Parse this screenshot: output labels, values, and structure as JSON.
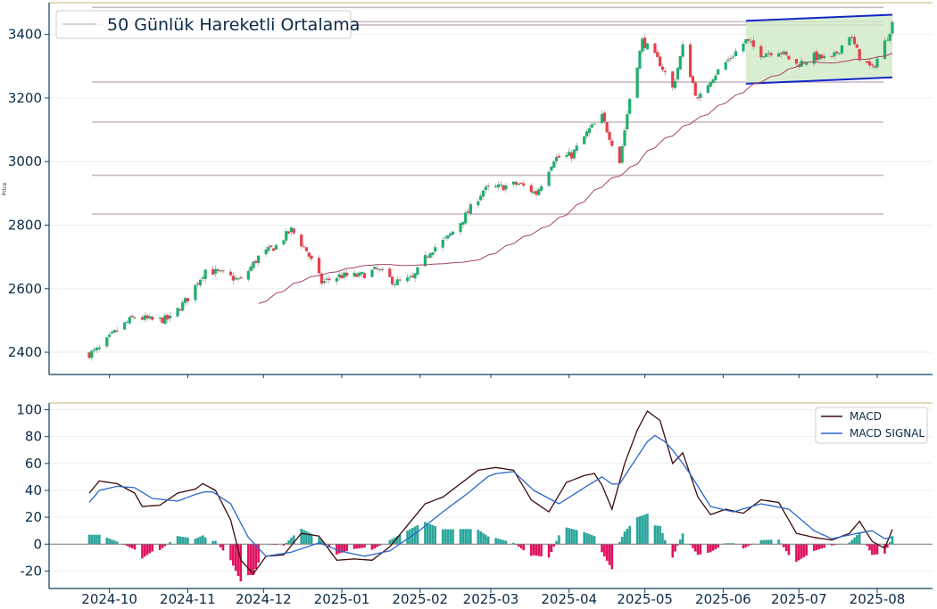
{
  "chart_data": [
    {
      "type": "candlestick",
      "ylabel": "Price",
      "ylim": [
        2330,
        3500
      ],
      "yticks": [
        2400,
        2600,
        2800,
        3000,
        3200,
        3400
      ],
      "legend": [
        "50 Günlük Hareketli Ortalama"
      ],
      "legend_position": "top-left",
      "colors": {
        "up": "#1fae6e",
        "down": "#e83f4a",
        "ma": "#a64563",
        "level": "#c9b8c2",
        "channel": "#1426c8",
        "channel_fill": "#cfe8c6",
        "axis": "#123e5c"
      },
      "horizontal_levels": [
        3485,
        3440,
        3430,
        3250,
        3124,
        2957,
        2835
      ],
      "channel": {
        "x": [
          "2025-06-10",
          "2025-08-07"
        ],
        "upper": [
          3443,
          3462
        ],
        "lower": [
          3245,
          3265
        ]
      },
      "anchors": [
        [
          "2024-09-23",
          2395
        ],
        [
          "2024-09-27",
          2410
        ],
        [
          "2024-10-04",
          2470
        ],
        [
          "2024-10-11",
          2512
        ],
        [
          "2024-10-18",
          2500
        ],
        [
          "2024-10-25",
          2505
        ],
        [
          "2024-11-01",
          2570
        ],
        [
          "2024-11-08",
          2660
        ],
        [
          "2024-11-15",
          2645
        ],
        [
          "2024-11-22",
          2625
        ],
        [
          "2024-11-29",
          2700
        ],
        [
          "2024-12-06",
          2735
        ],
        [
          "2024-12-12",
          2785
        ],
        [
          "2024-12-18",
          2720
        ],
        [
          "2024-12-24",
          2620
        ],
        [
          "2024-12-31",
          2640
        ],
        [
          "2025-01-08",
          2640
        ],
        [
          "2025-01-15",
          2660
        ],
        [
          "2025-01-22",
          2620
        ],
        [
          "2025-01-29",
          2630
        ],
        [
          "2025-02-05",
          2720
        ],
        [
          "2025-02-12",
          2760
        ],
        [
          "2025-02-19",
          2830
        ],
        [
          "2025-02-26",
          2910
        ],
        [
          "2025-03-05",
          2920
        ],
        [
          "2025-03-12",
          2930
        ],
        [
          "2025-03-19",
          2900
        ],
        [
          "2025-03-26",
          3010
        ],
        [
          "2025-04-02",
          3020
        ],
        [
          "2025-04-09",
          3100
        ],
        [
          "2025-04-14",
          3140
        ],
        [
          "2025-04-21",
          3000
        ],
        [
          "2025-04-25",
          3200
        ],
        [
          "2025-04-30",
          3380
        ],
        [
          "2025-05-07",
          3310
        ],
        [
          "2025-05-12",
          3230
        ],
        [
          "2025-05-16",
          3360
        ],
        [
          "2025-05-22",
          3190
        ],
        [
          "2025-05-27",
          3260
        ],
        [
          "2025-06-03",
          3320
        ],
        [
          "2025-06-10",
          3380
        ],
        [
          "2025-06-16",
          3340
        ],
        [
          "2025-06-23",
          3350
        ],
        [
          "2025-06-30",
          3305
        ],
        [
          "2025-07-07",
          3330
        ],
        [
          "2025-07-14",
          3320
        ],
        [
          "2025-07-21",
          3400
        ],
        [
          "2025-07-25",
          3330
        ],
        [
          "2025-07-30",
          3290
        ],
        [
          "2025-08-04",
          3375
        ],
        [
          "2025-08-07",
          3435
        ]
      ]
    },
    {
      "type": "bar+line",
      "ylim": [
        -33,
        105
      ],
      "yticks": [
        -20,
        0,
        20,
        40,
        60,
        80,
        100
      ],
      "xticks": [
        "2024-10",
        "2024-11",
        "2024-12",
        "2025-01",
        "2025-02",
        "2025-03",
        "2025-04",
        "2025-05",
        "2025-06",
        "2025-07",
        "2025-08"
      ],
      "legend_position": "top-right",
      "series": [
        {
          "name": "MACD",
          "color": "#3d0a0a",
          "anchors": [
            [
              "2024-09-23",
              38
            ],
            [
              "2024-09-27",
              47
            ],
            [
              "2024-10-04",
              45
            ],
            [
              "2024-10-11",
              38
            ],
            [
              "2024-10-14",
              28
            ],
            [
              "2024-10-21",
              29
            ],
            [
              "2024-10-28",
              38
            ],
            [
              "2024-11-04",
              41
            ],
            [
              "2024-11-07",
              45
            ],
            [
              "2024-11-12",
              40
            ],
            [
              "2024-11-18",
              18
            ],
            [
              "2024-11-22",
              -12
            ],
            [
              "2024-11-27",
              -22
            ],
            [
              "2024-12-02",
              -9
            ],
            [
              "2024-12-09",
              -8
            ],
            [
              "2024-12-16",
              8
            ],
            [
              "2024-12-23",
              6
            ],
            [
              "2024-12-30",
              -12
            ],
            [
              "2025-01-06",
              -11
            ],
            [
              "2025-01-13",
              -12
            ],
            [
              "2025-01-20",
              -2
            ],
            [
              "2025-01-27",
              14
            ],
            [
              "2025-02-03",
              30
            ],
            [
              "2025-02-10",
              35
            ],
            [
              "2025-02-17",
              45
            ],
            [
              "2025-02-24",
              55
            ],
            [
              "2025-03-03",
              57
            ],
            [
              "2025-03-10",
              55
            ],
            [
              "2025-03-17",
              33
            ],
            [
              "2025-03-24",
              24
            ],
            [
              "2025-03-31",
              46
            ],
            [
              "2025-04-07",
              51
            ],
            [
              "2025-04-12",
              53
            ],
            [
              "2025-04-18",
              26
            ],
            [
              "2025-04-23",
              60
            ],
            [
              "2025-04-28",
              85
            ],
            [
              "2025-05-02",
              99
            ],
            [
              "2025-05-07",
              92
            ],
            [
              "2025-05-12",
              60
            ],
            [
              "2025-05-16",
              68
            ],
            [
              "2025-05-22",
              35
            ],
            [
              "2025-05-27",
              22
            ],
            [
              "2025-06-02",
              26
            ],
            [
              "2025-06-09",
              23
            ],
            [
              "2025-06-16",
              33
            ],
            [
              "2025-06-23",
              31
            ],
            [
              "2025-06-30",
              8
            ],
            [
              "2025-07-07",
              5
            ],
            [
              "2025-07-14",
              3
            ],
            [
              "2025-07-21",
              8
            ],
            [
              "2025-07-25",
              17
            ],
            [
              "2025-07-30",
              2
            ],
            [
              "2025-08-04",
              -3
            ],
            [
              "2025-08-07",
              11
            ]
          ]
        },
        {
          "name": "MACD SIGNAL",
          "color": "#2a67c9",
          "anchors": [
            [
              "2024-09-23",
              31
            ],
            [
              "2024-09-27",
              40
            ],
            [
              "2024-10-04",
              43
            ],
            [
              "2024-10-11",
              42
            ],
            [
              "2024-10-18",
              34
            ],
            [
              "2024-10-28",
              32
            ],
            [
              "2024-11-04",
              37
            ],
            [
              "2024-11-10",
              40
            ],
            [
              "2024-11-18",
              30
            ],
            [
              "2024-11-25",
              5
            ],
            [
              "2024-12-02",
              -9
            ],
            [
              "2024-12-12",
              -6
            ],
            [
              "2024-12-23",
              1
            ],
            [
              "2024-12-31",
              -5
            ],
            [
              "2025-01-10",
              -9
            ],
            [
              "2025-01-20",
              -5
            ],
            [
              "2025-01-31",
              9
            ],
            [
              "2025-02-10",
              24
            ],
            [
              "2025-02-20",
              38
            ],
            [
              "2025-03-01",
              52
            ],
            [
              "2025-03-10",
              54
            ],
            [
              "2025-03-18",
              40
            ],
            [
              "2025-03-28",
              30
            ],
            [
              "2025-04-07",
              42
            ],
            [
              "2025-04-14",
              50
            ],
            [
              "2025-04-20",
              42
            ],
            [
              "2025-04-28",
              65
            ],
            [
              "2025-05-04",
              82
            ],
            [
              "2025-05-10",
              75
            ],
            [
              "2025-05-18",
              55
            ],
            [
              "2025-05-27",
              28
            ],
            [
              "2025-06-05",
              24
            ],
            [
              "2025-06-16",
              30
            ],
            [
              "2025-06-27",
              26
            ],
            [
              "2025-07-07",
              10
            ],
            [
              "2025-07-14",
              4
            ],
            [
              "2025-07-24",
              8
            ],
            [
              "2025-07-30",
              10
            ],
            [
              "2025-08-04",
              4
            ],
            [
              "2025-08-07",
              5
            ]
          ]
        }
      ],
      "histogram": {
        "pos_color": "#2aa59a",
        "neg_color": "#e0115f"
      }
    }
  ]
}
